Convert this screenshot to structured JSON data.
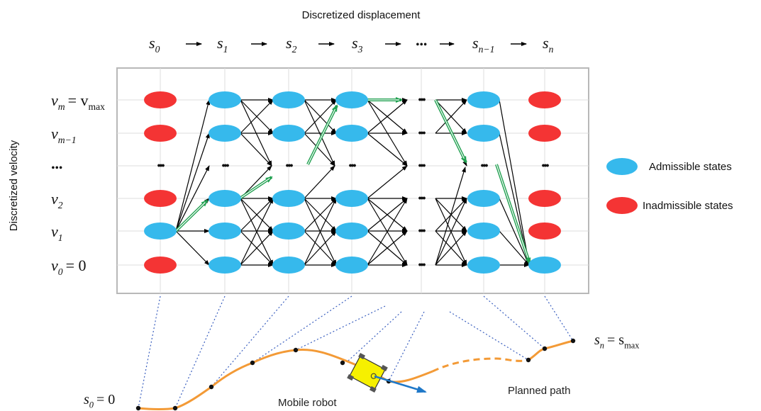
{
  "header": {
    "title": "Discretized displacement"
  },
  "yaxis": {
    "title": "Discretized velocity"
  },
  "s_labels": [
    {
      "base": "s",
      "sub": "0"
    },
    {
      "base": "s",
      "sub": "1"
    },
    {
      "base": "s",
      "sub": "2"
    },
    {
      "base": "s",
      "sub": "3"
    },
    {
      "base": "•••",
      "sub": ""
    },
    {
      "base": "s",
      "sub": "n−1"
    },
    {
      "base": "s",
      "sub": "n"
    }
  ],
  "v_labels": [
    {
      "text": "v",
      "sub": "m",
      "tail": "= v",
      "tailsub": "max"
    },
    {
      "text": "v",
      "sub": "m−1",
      "tail": "",
      "tailsub": ""
    },
    {
      "text": "•••",
      "sub": "",
      "tail": "",
      "tailsub": ""
    },
    {
      "text": "v",
      "sub": "2",
      "tail": "",
      "tailsub": ""
    },
    {
      "text": "v",
      "sub": "1",
      "tail": "",
      "tailsub": ""
    },
    {
      "text": "v",
      "sub": "0",
      "tail": "= 0",
      "tailsub": ""
    }
  ],
  "legend": {
    "admissible": "Admissible states",
    "inadmissible": "Inadmissible states"
  },
  "path_labels": {
    "start": {
      "text": "s",
      "sub": "0",
      "tail": "= 0",
      "tailsub": ""
    },
    "end": {
      "text": "s",
      "sub": "n",
      "tail": "= s",
      "tailsub": "max"
    },
    "robot": "Mobile robot",
    "planned": "Planned path"
  },
  "colors": {
    "admissible": "#36b9ec",
    "inadmissible": "#f43434",
    "optimal_arrow": "#20a050",
    "path": "#f39a36",
    "robot": "#f6f000",
    "heading": "#1f78c8",
    "projection": "#3a5fbf"
  },
  "states": {
    "s0": [
      "inadmissible",
      "inadmissible",
      "dots",
      "inadmissible",
      "admissible",
      "inadmissible"
    ],
    "s1": [
      "admissible",
      "admissible",
      "dots",
      "admissible",
      "admissible",
      "admissible"
    ],
    "s2": [
      "admissible",
      "admissible",
      "dots",
      "admissible",
      "admissible",
      "admissible"
    ],
    "s3": [
      "admissible",
      "admissible",
      "dots",
      "admissible",
      "admissible",
      "admissible"
    ],
    "sdots": [
      "dots",
      "dots",
      "dots",
      "dots",
      "dots",
      "dots"
    ],
    "sn1": [
      "admissible",
      "admissible",
      "dots",
      "admissible",
      "admissible",
      "admissible"
    ],
    "sn": [
      "inadmissible",
      "inadmissible",
      "dots",
      "inadmissible",
      "inadmissible",
      "admissible"
    ]
  }
}
